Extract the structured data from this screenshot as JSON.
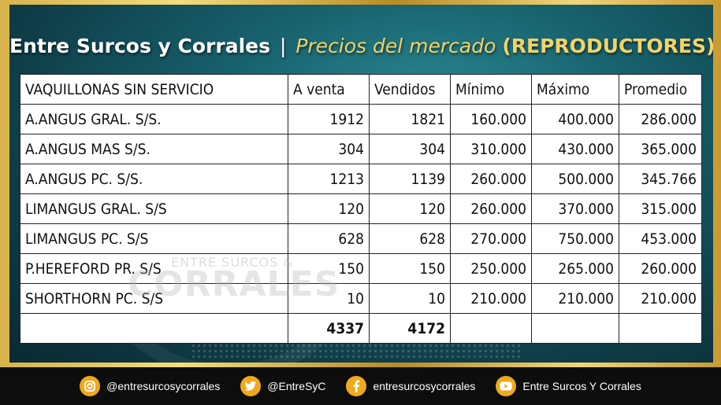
{
  "title": {
    "part1": "Entre Surcos y Corrales",
    "separator": "|",
    "part2": "Precios del mercado",
    "part3": "(REPRODUCTORES)"
  },
  "watermark": {
    "line1": "ENTRE SURCOS &",
    "line2": "CORRALES"
  },
  "table": {
    "headers": [
      "VAQUILLONAS SIN SERVICIO",
      "A venta",
      "Vendidos",
      "Mínimo",
      "Máximo",
      "Promedio"
    ],
    "rows": [
      [
        "A.ANGUS GRAL. S/S.",
        "1912",
        "1821",
        "160.000",
        "400.000",
        "286.000"
      ],
      [
        "A.ANGUS MAS S/S.",
        "304",
        "304",
        "310.000",
        "430.000",
        "365.000"
      ],
      [
        "A.ANGUS PC. S/S.",
        "1213",
        "1139",
        "260.000",
        "500.000",
        "345.766"
      ],
      [
        "LIMANGUS GRAL. S/S",
        "120",
        "120",
        "260.000",
        "370.000",
        "315.000"
      ],
      [
        "LIMANGUS PC. S/S",
        "628",
        "628",
        "270.000",
        "750.000",
        "453.000"
      ],
      [
        "P.HEREFORD PR. S/S",
        "150",
        "150",
        "250.000",
        "265.000",
        "260.000"
      ],
      [
        "SHORTHORN PC. S/S",
        "10",
        "10",
        "210.000",
        "210.000",
        "210.000"
      ]
    ],
    "totals": [
      "",
      "4337",
      "4172",
      "",
      "",
      ""
    ]
  },
  "footer": {
    "instagram": "@entresurcosycorrales",
    "twitter": "@EntreSyC",
    "facebook": "entresurcosycorrales",
    "youtube": "Entre Surcos Y Corrales"
  },
  "colors": {
    "accent": "#f2d36a",
    "icon_bg": "#f0a81c",
    "panel": "#17616d"
  }
}
